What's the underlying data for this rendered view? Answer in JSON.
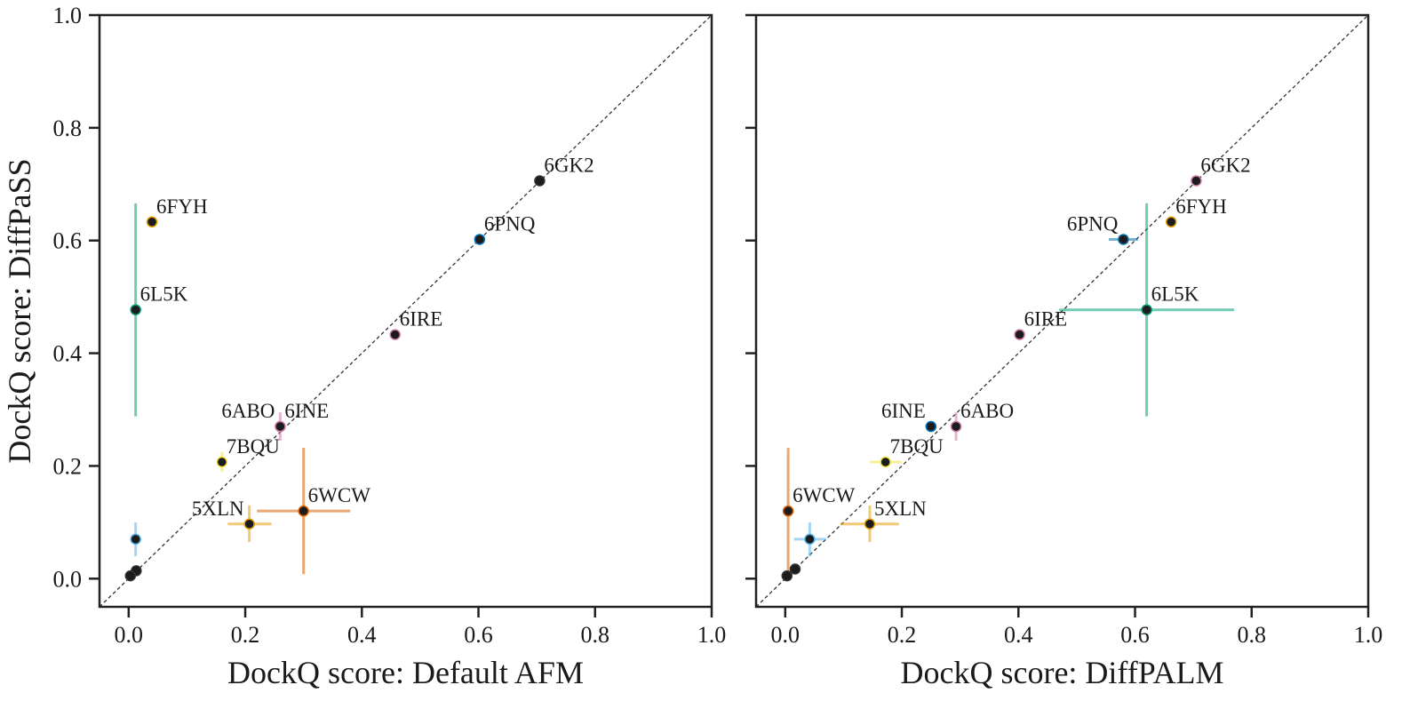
{
  "chart_data": [
    {
      "type": "scatter",
      "title": "",
      "xlabel": "DockQ score: Default AFM",
      "ylabel": "DockQ score: DiffPaSS",
      "xlim": [
        -0.05,
        1.0
      ],
      "ylim": [
        -0.05,
        1.0
      ],
      "xticks": [
        "0.0",
        "0.2",
        "0.4",
        "0.6",
        "0.8",
        "1.0"
      ],
      "yticks": [
        "0.0",
        "0.2",
        "0.4",
        "0.6",
        "0.8",
        "1.0"
      ],
      "diagonal": true,
      "points": [
        {
          "label": "6GK2",
          "x": 0.705,
          "y": 0.706,
          "x_err": [
            0.0,
            0.0
          ],
          "y_err": [
            0.0,
            0.0
          ],
          "err_color": "#333333",
          "label_pos": "right"
        },
        {
          "label": "6PNQ",
          "x": 0.602,
          "y": 0.602,
          "x_err": [
            0.0,
            0.0
          ],
          "y_err": [
            0.0,
            0.0
          ],
          "err_color": "#0072B2",
          "label_pos": "right"
        },
        {
          "label": "6FYH",
          "x": 0.04,
          "y": 0.633,
          "x_err": [
            0.0,
            0.0
          ],
          "y_err": [
            0.623,
            0.643
          ],
          "err_color": "#E69F00",
          "label_pos": "right"
        },
        {
          "label": "6L5K",
          "x": 0.012,
          "y": 0.477,
          "x_err": [
            0.0,
            0.0
          ],
          "y_err": [
            0.288,
            0.666
          ],
          "err_color": "#009E73",
          "label_pos": "right"
        },
        {
          "label": "6IRE",
          "x": 0.457,
          "y": 0.433,
          "x_err": [
            0.0,
            0.0
          ],
          "y_err": [
            0.0,
            0.0
          ],
          "err_color": "#CC79A7",
          "label_pos": "right"
        },
        {
          "label": "6INE",
          "x": 0.26,
          "y": 0.27,
          "x_err": [
            0.0,
            0.0
          ],
          "y_err": [
            0.245,
            0.295
          ],
          "err_color": "#CC79A7",
          "label_pos": "right"
        },
        {
          "label": "6ABO",
          "x": 0.26,
          "y": 0.27,
          "x_err": [
            0.0,
            0.0
          ],
          "y_err": [
            0.0,
            0.0
          ],
          "err_color": "#CC79A7",
          "label_pos": "left"
        },
        {
          "label": "7BQU",
          "x": 0.16,
          "y": 0.207,
          "x_err": [
            0.0,
            0.0
          ],
          "y_err": [
            0.19,
            0.225
          ],
          "err_color": "#F0E442",
          "label_pos": "right"
        },
        {
          "label": "6WCW",
          "x": 0.3,
          "y": 0.12,
          "x_err": [
            0.22,
            0.38
          ],
          "y_err": [
            0.008,
            0.232
          ],
          "err_color": "#D55E00",
          "label_pos": "right"
        },
        {
          "label": "5XLN",
          "x": 0.207,
          "y": 0.097,
          "x_err": [
            0.17,
            0.245
          ],
          "y_err": [
            0.065,
            0.13
          ],
          "err_color": "#E69F00",
          "label_pos": "left"
        },
        {
          "label": "",
          "x": 0.012,
          "y": 0.07,
          "x_err": [
            0.0,
            0.0
          ],
          "y_err": [
            0.04,
            0.1
          ],
          "err_color": "#56B4E9",
          "label_pos": "none"
        },
        {
          "label": "",
          "x": 0.013,
          "y": 0.014,
          "x_err": [
            0.0,
            0.0
          ],
          "y_err": [
            0.0,
            0.0
          ],
          "err_color": "#333333",
          "label_pos": "none"
        },
        {
          "label": "",
          "x": 0.003,
          "y": 0.005,
          "x_err": [
            0.0,
            0.0
          ],
          "y_err": [
            0.0,
            0.0
          ],
          "err_color": "#333333",
          "label_pos": "none"
        }
      ]
    },
    {
      "type": "scatter",
      "title": "",
      "xlabel": "DockQ score: DiffPALM",
      "ylabel": "",
      "xlim": [
        -0.05,
        1.0
      ],
      "ylim": [
        -0.05,
        1.0
      ],
      "xticks": [
        "0.0",
        "0.2",
        "0.4",
        "0.6",
        "0.8",
        "1.0"
      ],
      "yticks": [
        "",
        "",
        "",
        "",
        "",
        ""
      ],
      "diagonal": true,
      "points": [
        {
          "label": "6GK2",
          "x": 0.705,
          "y": 0.706,
          "x_err": [
            0.0,
            0.0
          ],
          "y_err": [
            0.0,
            0.0
          ],
          "err_color": "#CC79A7",
          "label_pos": "right"
        },
        {
          "label": "6PNQ",
          "x": 0.58,
          "y": 0.602,
          "x_err": [
            0.555,
            0.605
          ],
          "y_err": [
            0.0,
            0.0
          ],
          "err_color": "#0072B2",
          "label_pos": "left"
        },
        {
          "label": "6FYH",
          "x": 0.662,
          "y": 0.633,
          "x_err": [
            0.0,
            0.0
          ],
          "y_err": [
            0.623,
            0.643
          ],
          "err_color": "#E69F00",
          "label_pos": "right"
        },
        {
          "label": "6L5K",
          "x": 0.62,
          "y": 0.477,
          "x_err": [
            0.47,
            0.77
          ],
          "y_err": [
            0.288,
            0.666
          ],
          "err_color": "#009E73",
          "label_pos": "right"
        },
        {
          "label": "6IRE",
          "x": 0.402,
          "y": 0.433,
          "x_err": [
            0.0,
            0.0
          ],
          "y_err": [
            0.0,
            0.0
          ],
          "err_color": "#CC79A7",
          "label_pos": "right"
        },
        {
          "label": "6INE",
          "x": 0.25,
          "y": 0.27,
          "x_err": [
            0.0,
            0.0
          ],
          "y_err": [
            0.0,
            0.0
          ],
          "err_color": "#0072B2",
          "label_pos": "left"
        },
        {
          "label": "6ABO",
          "x": 0.293,
          "y": 0.27,
          "x_err": [
            0.0,
            0.0
          ],
          "y_err": [
            0.245,
            0.295
          ],
          "err_color": "#CC79A7",
          "label_pos": "right"
        },
        {
          "label": "7BQU",
          "x": 0.172,
          "y": 0.207,
          "x_err": [
            0.145,
            0.2
          ],
          "y_err": [
            0.0,
            0.0
          ],
          "err_color": "#F0E442",
          "label_pos": "right"
        },
        {
          "label": "6WCW",
          "x": 0.005,
          "y": 0.12,
          "x_err": [
            0.0,
            0.0
          ],
          "y_err": [
            0.008,
            0.232
          ],
          "err_color": "#D55E00",
          "label_pos": "right"
        },
        {
          "label": "5XLN",
          "x": 0.145,
          "y": 0.097,
          "x_err": [
            0.095,
            0.195
          ],
          "y_err": [
            0.065,
            0.13
          ],
          "err_color": "#E69F00",
          "label_pos": "right"
        },
        {
          "label": "",
          "x": 0.042,
          "y": 0.07,
          "x_err": [
            0.015,
            0.07
          ],
          "y_err": [
            0.04,
            0.1
          ],
          "err_color": "#56B4E9",
          "label_pos": "none"
        },
        {
          "label": "",
          "x": 0.017,
          "y": 0.017,
          "x_err": [
            0.0,
            0.0
          ],
          "y_err": [
            0.0,
            0.0
          ],
          "err_color": "#333333",
          "label_pos": "none"
        },
        {
          "label": "",
          "x": 0.003,
          "y": 0.005,
          "x_err": [
            0.0,
            0.0
          ],
          "y_err": [
            0.0,
            0.0
          ],
          "err_color": "#333333",
          "label_pos": "none"
        }
      ]
    }
  ]
}
